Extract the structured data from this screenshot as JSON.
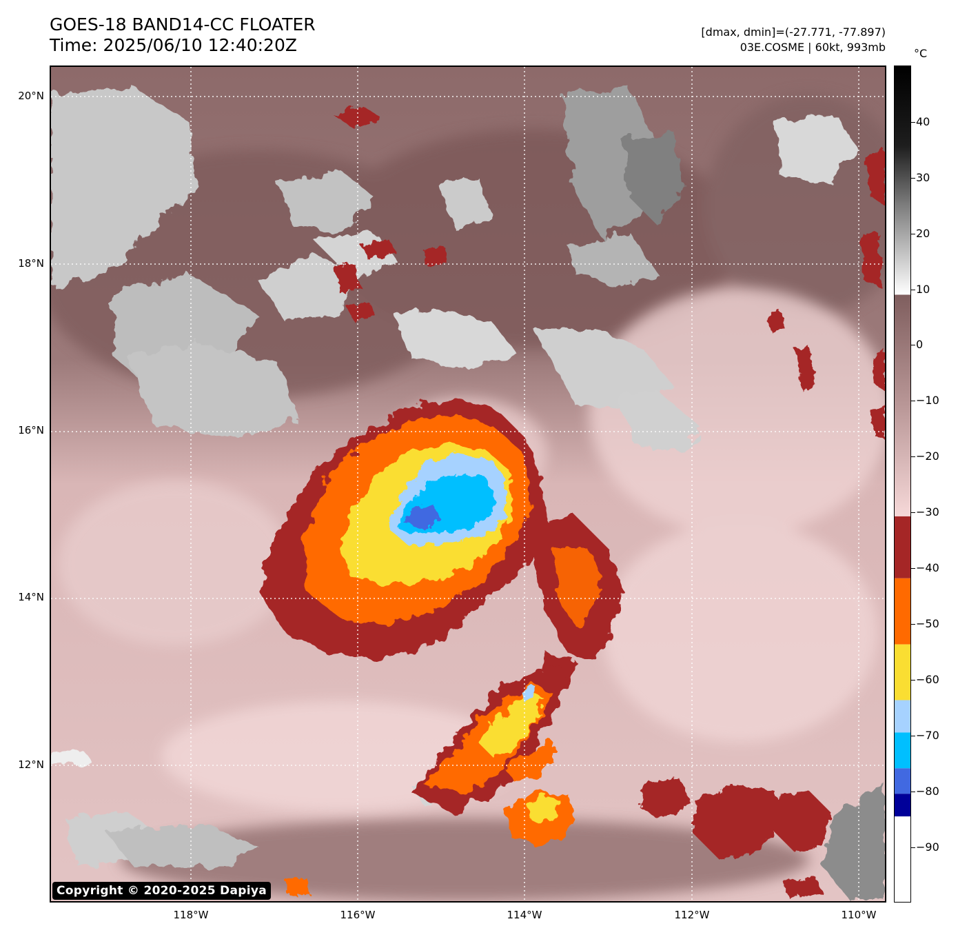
{
  "header": {
    "title_line1": "GOES-18 BAND14-CC FLOATER",
    "title_line2": "Time: 2025/06/10 12:40:20Z",
    "range_text": "[dmax, dmin]=(-27.771, -77.897)",
    "storm_text": "03E.COSME | 60kt, 993mb"
  },
  "map": {
    "lat_labels": [
      "20°N",
      "18°N",
      "16°N",
      "14°N",
      "12°N"
    ],
    "lon_labels": [
      "118°W",
      "116°W",
      "114°W",
      "112°W",
      "110°W"
    ],
    "copyright": "Copyright © 2020-2025 Dapiya"
  },
  "colorbar": {
    "unit": "°C",
    "ticks": [
      "40",
      "30",
      "20",
      "10",
      "0",
      "−10",
      "−20",
      "−30",
      "−40",
      "−50",
      "−60",
      "−70",
      "−80",
      "−90"
    ],
    "bands": [
      {
        "range": "above 8",
        "color": "grayscale"
      },
      {
        "range": "-32 to 8",
        "color": "#7f5e5e to #f6d8d8"
      },
      {
        "range": "-43 to -32",
        "color": "#a52626"
      },
      {
        "range": "-55 to -43",
        "color": "#ff6a00"
      },
      {
        "range": "-65 to -55",
        "color": "#fade32"
      },
      {
        "range": "-71 to -65",
        "color": "#a6d2ff"
      },
      {
        "range": "-77 to -71",
        "color": "#00bfff"
      },
      {
        "range": "-81 to -77",
        "color": "#4169e1"
      },
      {
        "range": "-85 to -81",
        "color": "#000099"
      },
      {
        "range": "below -85",
        "color": "#ffffff"
      }
    ]
  }
}
